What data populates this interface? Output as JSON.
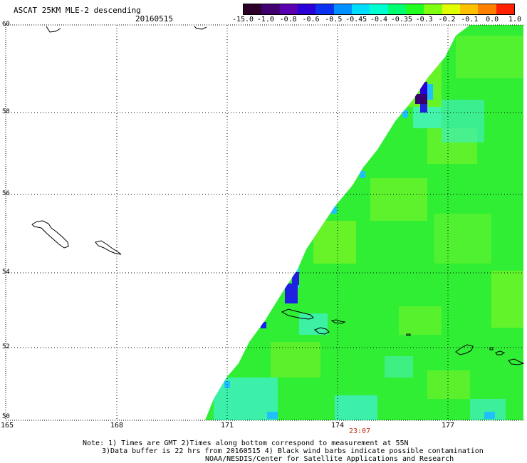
{
  "title": "ASCAT 25KM MLE-2 descending",
  "date": "20160515",
  "colorbar": {
    "labels": [
      "-15.0",
      "-1.0",
      "-0.8",
      "-0.6",
      "-0.5",
      "-0.45",
      "-0.4",
      "-0.35",
      "-0.3",
      "-0.2",
      "-0.1",
      "0.0",
      "1.0"
    ],
    "colors": [
      "#2a0028",
      "#400070",
      "#5a00b0",
      "#2a00d8",
      "#0a30f0",
      "#0090ff",
      "#00ddff",
      "#00ffd0",
      "#00ff70",
      "#20ff20",
      "#80ff10",
      "#e0ff00",
      "#ffc000",
      "#ff8000",
      "#ff2000"
    ]
  },
  "axes": {
    "lat_labels": [
      "60",
      "58",
      "56",
      "54",
      "52",
      "50"
    ],
    "lon_labels": [
      "165",
      "168",
      "171",
      "174",
      "177"
    ]
  },
  "time_label": "23:07",
  "notes": {
    "line1": "Note: 1) Times are GMT 2)Times along bottom correspond to measurement at 55N",
    "line2": "3)Data buffer is 22 hrs from 20160515 4) Black wind barbs indicate possible contamination",
    "line3": "NOAA/NESDIS/Center for Satellite Applications and Research"
  },
  "map_colors": {
    "green": "#30f030",
    "light_green": "#80f020",
    "cyan": "#40f8d0",
    "blue": "#2020e0",
    "purple": "#3a0070"
  }
}
